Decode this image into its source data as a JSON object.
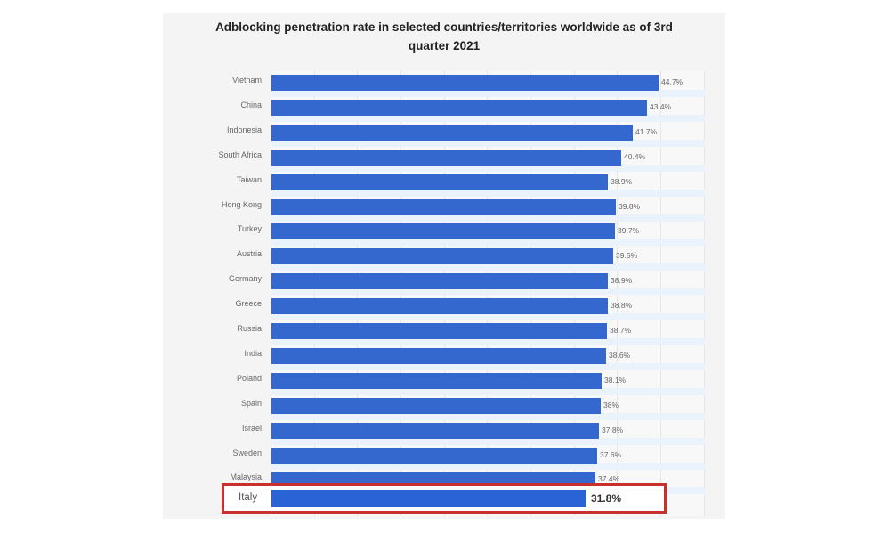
{
  "chart_data": {
    "type": "bar",
    "orientation": "horizontal",
    "title": "Adblocking penetration rate in selected countries/territories worldwide as of 3rd quarter 2021",
    "xlabel": "",
    "ylabel": "",
    "xlim": [
      0,
      50
    ],
    "grid": true,
    "legend": null,
    "categories": [
      "Vietnam",
      "China",
      "Indonesia",
      "South Africa",
      "Taiwan",
      "Hong Kong",
      "Turkey",
      "Austria",
      "Germany",
      "Greece",
      "Russia",
      "India",
      "Poland",
      "Spain",
      "Israel",
      "Sweden",
      "Malaysia",
      "Italy"
    ],
    "values": [
      44.7,
      43.4,
      41.7,
      40.4,
      38.9,
      39.8,
      39.7,
      39.5,
      38.9,
      38.8,
      38.7,
      38.6,
      38.1,
      38,
      37.8,
      37.6,
      37.4,
      31.8
    ],
    "value_labels": [
      "44.7%",
      "43.4%",
      "41.7%",
      "40.4%",
      "38.9%",
      "39.8%",
      "39.7%",
      "39.5%",
      "38.9%",
      "38.8%",
      "38.7%",
      "38.6%",
      "38.1%",
      "38%",
      "37.8%",
      "37.6%",
      "37.4%",
      "31.8%"
    ],
    "highlighted": {
      "category": "Italy",
      "value_label": "31.8%",
      "highlight_color": "#c9302c"
    },
    "bar_color": "#3468cf"
  },
  "title_line1": "Adblocking penetration rate in selected countries/territories worldwide as of 3rd",
  "title_line2": "quarter 2021"
}
